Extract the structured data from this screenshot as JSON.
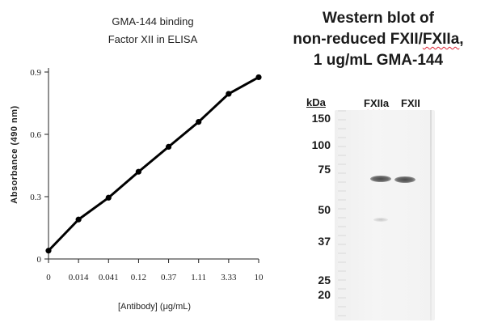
{
  "chart_data": {
    "type": "line",
    "title": [
      "GMA-144 binding",
      "Factor XII in ELISA"
    ],
    "xlabel": "[Antibody] (μg/mL)",
    "ylabel": "Absorbance (490 nm)",
    "categories": [
      "0",
      "0.014",
      "0.041",
      "0.12",
      "0.37",
      "1.11",
      "3.33",
      "10"
    ],
    "series": [
      {
        "values": [
          0.04,
          0.19,
          0.295,
          0.42,
          0.54,
          0.66,
          0.795,
          0.875
        ]
      }
    ],
    "ylim": [
      0,
      0.9
    ],
    "yticks": [
      "0",
      "0.3",
      "0.6",
      "0.9"
    ],
    "yticks_values": [
      0,
      0.3,
      0.6,
      0.9
    ],
    "grid": false,
    "legend": "none"
  },
  "western_blot": {
    "title_lines": [
      "Western blot of",
      "non-reduced FXII/FXIIa,",
      "1 ug/mL GMA-144"
    ],
    "title_line2_prefix": "non-reduced FXII/",
    "title_line2_squiggle": "FXIIa",
    "title_line2_suffix": ",",
    "unit_label": "kDa",
    "lanes": [
      "FXIIa",
      "FXII"
    ],
    "markers": [
      "150",
      "100",
      "75",
      "50",
      "37",
      "25",
      "20"
    ],
    "marker_kda": [
      150,
      100,
      75,
      50,
      37,
      25,
      20
    ]
  }
}
